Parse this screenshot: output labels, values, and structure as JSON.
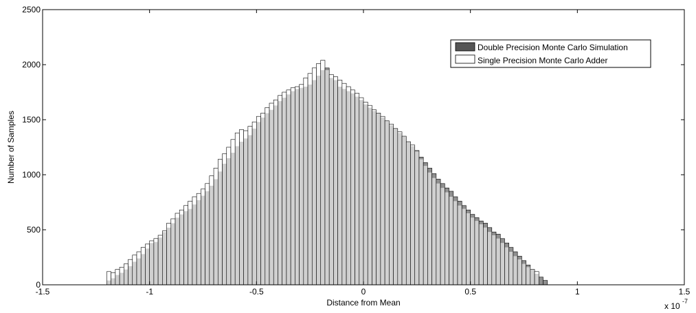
{
  "chart_data": {
    "type": "bar",
    "title": "",
    "xlabel": "Distance from Mean",
    "ylabel": "Number of Samples",
    "x_multiplier_label": "x 10",
    "x_multiplier_exponent": "-7",
    "xlim": [
      -1.5,
      1.5
    ],
    "ylim": [
      0,
      2500
    ],
    "x_ticks": [
      -1.5,
      -1,
      -0.5,
      0,
      0.5,
      1,
      1.5
    ],
    "x_tick_labels": [
      "-1.5",
      "-1",
      "-0.5",
      "0",
      "0.5",
      "1",
      "1.5"
    ],
    "y_ticks": [
      0,
      500,
      1000,
      1500,
      2000,
      2500
    ],
    "y_tick_labels": [
      "0",
      "500",
      "1000",
      "1500",
      "2000",
      "2500"
    ],
    "grid": false,
    "legend_position": "top-right",
    "bin_start": -1.2,
    "bin_width": 0.02,
    "overlap_color": "#d0d0d0",
    "series": [
      {
        "name": "Double Precision Monte Carlo Simulation",
        "color": "#555555",
        "values": [
          40,
          60,
          90,
          110,
          140,
          170,
          210,
          240,
          280,
          330,
          380,
          390,
          430,
          480,
          520,
          560,
          610,
          640,
          670,
          690,
          730,
          770,
          810,
          850,
          900,
          960,
          1030,
          1100,
          1150,
          1200,
          1260,
          1300,
          1330,
          1360,
          1420,
          1480,
          1520,
          1560,
          1590,
          1630,
          1670,
          1700,
          1730,
          1760,
          1780,
          1790,
          1800,
          1820,
          1860,
          1900,
          1950,
          1970,
          1880,
          1860,
          1800,
          1780,
          1760,
          1740,
          1710,
          1680,
          1640,
          1610,
          1580,
          1560,
          1520,
          1490,
          1450,
          1420,
          1380,
          1350,
          1300,
          1260,
          1220,
          1160,
          1110,
          1060,
          1010,
          960,
          920,
          880,
          850,
          800,
          760,
          720,
          680,
          640,
          610,
          580,
          560,
          520,
          480,
          460,
          420,
          380,
          340,
          300,
          260,
          220,
          180,
          140,
          100,
          70,
          40
        ]
      },
      {
        "name": "Single Precision Monte Carlo Adder",
        "color": "#ffffff",
        "values": [
          120,
          110,
          140,
          160,
          190,
          230,
          270,
          300,
          340,
          370,
          400,
          420,
          450,
          490,
          560,
          600,
          650,
          680,
          720,
          760,
          800,
          830,
          870,
          920,
          990,
          1060,
          1140,
          1190,
          1250,
          1320,
          1380,
          1410,
          1400,
          1440,
          1480,
          1530,
          1560,
          1610,
          1650,
          1680,
          1720,
          1750,
          1770,
          1790,
          1800,
          1820,
          1880,
          1920,
          1970,
          2010,
          2040,
          1950,
          1910,
          1890,
          1860,
          1830,
          1800,
          1770,
          1740,
          1700,
          1660,
          1630,
          1590,
          1560,
          1530,
          1490,
          1460,
          1420,
          1390,
          1350,
          1300,
          1270,
          1210,
          1140,
          1080,
          1020,
          970,
          920,
          880,
          840,
          800,
          760,
          720,
          690,
          650,
          610,
          580,
          550,
          520,
          480,
          450,
          420,
          380,
          340,
          300,
          260,
          230,
          190,
          160,
          140,
          120
        ]
      }
    ]
  }
}
